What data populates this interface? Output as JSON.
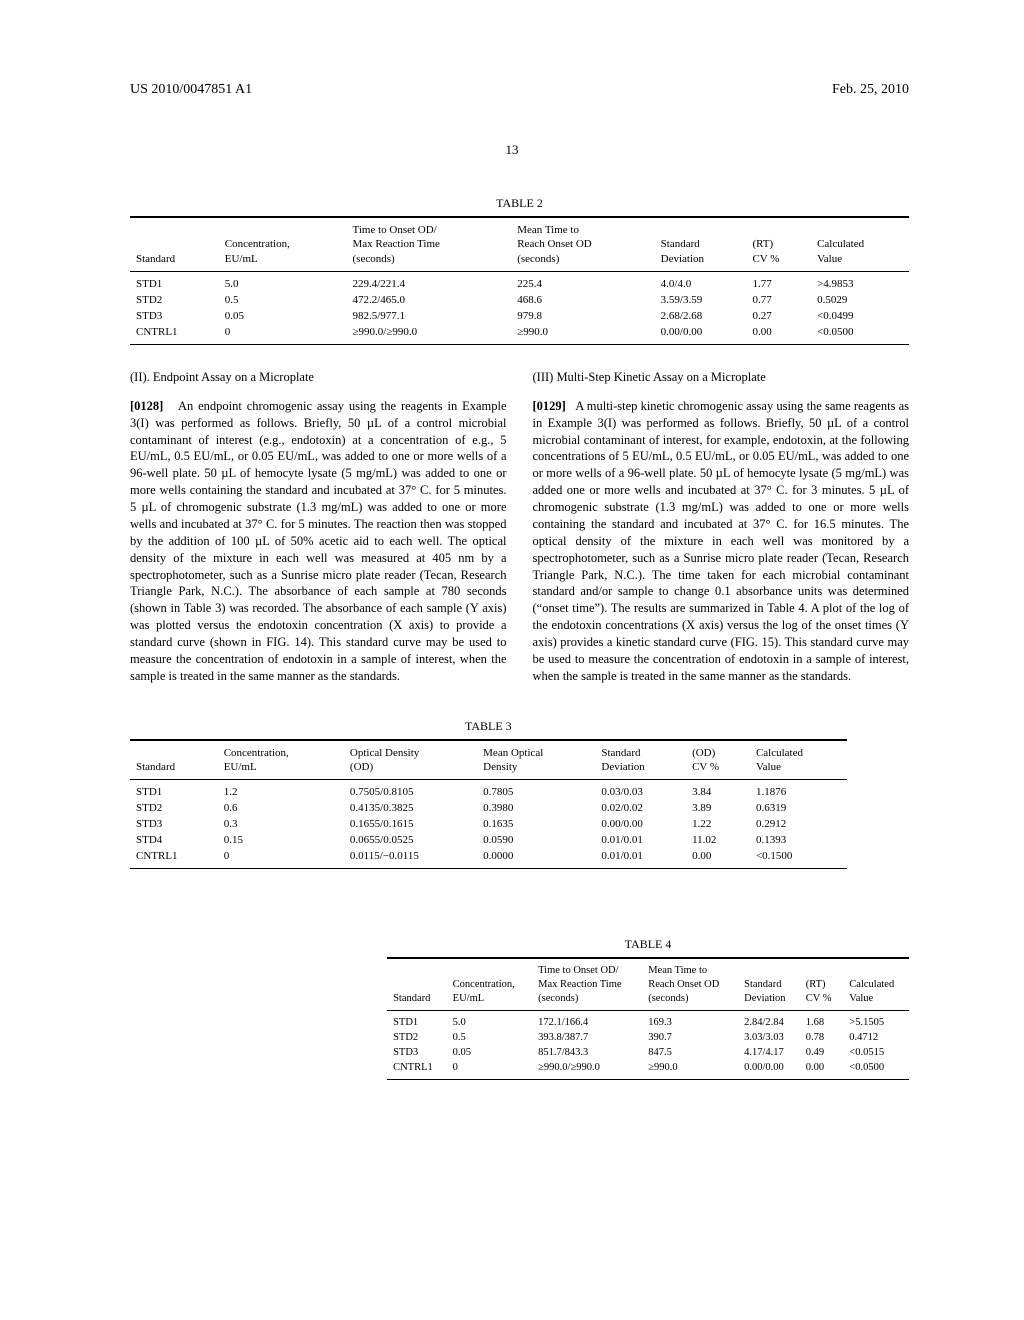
{
  "header": {
    "pub_number": "US 2010/0047851 A1",
    "pub_date": "Feb. 25, 2010"
  },
  "page_number": "13",
  "table2": {
    "caption": "TABLE 2",
    "columns": [
      "Standard",
      "Concentration,\nEU/mL",
      "Time to Onset OD/\nMax Reaction Time\n(seconds)",
      "Mean Time to\nReach Onset OD\n(seconds)",
      "Standard\nDeviation",
      "(RT)\nCV %",
      "Calculated\nValue"
    ],
    "rows": [
      [
        "STD1",
        "5.0",
        "229.4/221.4",
        "225.4",
        "4.0/4.0",
        "1.77",
        ">4.9853"
      ],
      [
        "STD2",
        "0.5",
        "472.2/465.0",
        "468.6",
        "3.59/3.59",
        "0.77",
        "0.5029"
      ],
      [
        "STD3",
        "0.05",
        "982.5/977.1",
        "979.8",
        "2.68/2.68",
        "0.27",
        "<0.0499"
      ],
      [
        "CNTRL1",
        "0",
        "≥990.0/≥990.0",
        "≥990.0",
        "0.00/0.00",
        "0.00",
        "<0.0500"
      ]
    ]
  },
  "section_left": {
    "title": "(II). Endpoint Assay on a Microplate",
    "para_num": "[0128]",
    "body": "An endpoint chromogenic assay using the reagents in Example 3(I) was performed as follows. Briefly, 50 µL of a control microbial contaminant of interest (e.g., endotoxin) at a concentration of e.g., 5 EU/mL, 0.5 EU/mL, or 0.05 EU/mL, was added to one or more wells of a 96-well plate. 50 µL of hemocyte lysate (5 mg/mL) was added to one or more wells containing the standard and incubated at 37° C. for 5 minutes. 5 µL of chromogenic substrate (1.3 mg/mL) was added to one or more wells and incubated at 37° C. for 5 minutes. The reaction then was stopped by the addition of 100 µL of 50% acetic aid to each well. The optical density of the mixture in each well was measured at 405 nm by a spectrophotometer, such as a Sunrise micro plate reader (Tecan, Research Triangle Park, N.C.). The absorbance of each sample at 780 seconds (shown in Table 3) was recorded. The absorbance of each sample (Y axis) was plotted versus the endotoxin concentration (X axis) to provide a standard curve (shown in FIG. 14). This standard curve may be used to measure the concentration of endotoxin in a sample of interest, when the sample is treated in the same manner as the standards."
  },
  "section_right": {
    "title": "(III) Multi-Step Kinetic Assay on a Microplate",
    "para_num": "[0129]",
    "body": "A multi-step kinetic chromogenic assay using the same reagents as in Example 3(I) was performed as follows. Briefly, 50 µL of a control microbial contaminant of interest, for example, endotoxin, at the following concentrations of 5 EU/mL, 0.5 EU/mL, or 0.05 EU/mL, was added to one or more wells of a 96-well plate. 50 µL of hemocyte lysate (5 mg/mL) was added one or more wells and incubated at 37° C. for 3 minutes. 5 µL of chromogenic substrate (1.3 mg/mL) was added to one or more wells containing the standard and incubated at 37° C. for 16.5 minutes. The optical density of the mixture in each well was monitored by a spectrophotometer, such as a Sunrise micro plate reader (Tecan, Research Triangle Park, N.C.). The time taken for each microbial contaminant standard and/or sample to change 0.1 absorbance units was determined (“onset time”). The results are summarized in Table 4. A plot of the log of the endotoxin concentrations (X axis) versus the log of the onset times (Y axis) provides a kinetic standard curve (FIG. 15). This standard curve may be used to measure the concentration of endotoxin in a sample of interest, when the sample is treated in the same manner as the standards."
  },
  "table3": {
    "caption": "TABLE 3",
    "columns": [
      "Standard",
      "Concentration,\nEU/mL",
      "Optical Density\n(OD)",
      "Mean Optical\nDensity",
      "Standard\nDeviation",
      "(OD)\nCV %",
      "Calculated\nValue"
    ],
    "rows": [
      [
        "STD1",
        "1.2",
        "0.7505/0.8105",
        "0.7805",
        "0.03/0.03",
        "3.84",
        "1.1876"
      ],
      [
        "STD2",
        "0.6",
        "0.4135/0.3825",
        "0.3980",
        "0.02/0.02",
        "3.89",
        "0.6319"
      ],
      [
        "STD3",
        "0.3",
        "0.1655/0.1615",
        "0.1635",
        "0.00/0.00",
        "1.22",
        "0.2912"
      ],
      [
        "STD4",
        "0.15",
        "0.0655/0.0525",
        "0.0590",
        "0.01/0.01",
        "11.02",
        "0.1393"
      ],
      [
        "CNTRL1",
        "0",
        "0.0115/−0.0115",
        "0.0000",
        "0.01/0.01",
        "0.00",
        "<0.1500"
      ]
    ]
  },
  "table4": {
    "caption": "TABLE 4",
    "columns": [
      "Standard",
      "Concentration,\nEU/mL",
      "Time to Onset OD/\nMax Reaction Time\n(seconds)",
      "Mean Time to\nReach Onset OD\n(seconds)",
      "Standard\nDeviation",
      "(RT)\nCV %",
      "Calculated\nValue"
    ],
    "rows": [
      [
        "STD1",
        "5.0",
        "172.1/166.4",
        "169.3",
        "2.84/2.84",
        "1.68",
        ">5.1505"
      ],
      [
        "STD2",
        "0.5",
        "393.8/387.7",
        "390.7",
        "3.03/3.03",
        "0.78",
        "0.4712"
      ],
      [
        "STD3",
        "0.05",
        "851.7/843.3",
        "847.5",
        "4.17/4.17",
        "0.49",
        "<0.0515"
      ],
      [
        "CNTRL1",
        "0",
        "≥990.0/≥990.0",
        "≥990.0",
        "0.00/0.00",
        "0.00",
        "<0.0500"
      ]
    ]
  }
}
